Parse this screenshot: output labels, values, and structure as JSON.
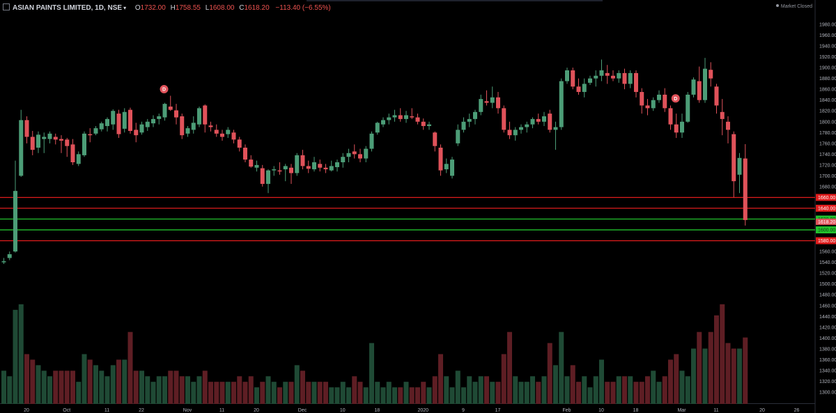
{
  "header": {
    "symbol": "ASIAN PAINTS LIMITED, 1D, NSE",
    "o_label": "O",
    "o_value": "1732.00",
    "h_label": "H",
    "h_value": "1758.55",
    "l_label": "L",
    "l_value": "1608.00",
    "c_label": "C",
    "c_value": "1618.20",
    "change": "−113.40 (−6.55%)",
    "status": "Market Closed"
  },
  "colors": {
    "background": "#000000",
    "up": "#4c9d77",
    "down": "#e0525a",
    "volume_up": "#1f4a35",
    "volume_down": "#5e1e24",
    "resistance_line": "#e01c1c",
    "support_line": "#22c32e",
    "axis_text": "#b2b5be"
  },
  "chart_data": {
    "type": "candlestick",
    "y_ticks": [
      "1300.00",
      "1320.00",
      "1340.00",
      "1360.00",
      "1380.00",
      "1400.00",
      "1420.00",
      "1440.00",
      "1460.00",
      "1480.00",
      "1500.00",
      "1520.00",
      "1540.00",
      "1560.00",
      "1580.00",
      "1600.00",
      "1620.00",
      "1640.00",
      "1660.00",
      "1680.00",
      "1700.00",
      "1720.00",
      "1740.00",
      "1760.00",
      "1780.00",
      "1800.00",
      "1820.00",
      "1840.00",
      "1860.00",
      "1880.00",
      "1900.00",
      "1920.00",
      "1940.00",
      "1960.00",
      "1980.00"
    ],
    "ylim": [
      1285,
      1990
    ],
    "x_ticks": [
      {
        "label": "20",
        "index": 2
      },
      {
        "label": "Oct",
        "index": 9
      },
      {
        "label": "11",
        "index": 16
      },
      {
        "label": "22",
        "index": 22
      },
      {
        "label": "Nov",
        "index": 30
      },
      {
        "label": "11",
        "index": 36
      },
      {
        "label": "20",
        "index": 42
      },
      {
        "label": "Dec",
        "index": 50
      },
      {
        "label": "10",
        "index": 57
      },
      {
        "label": "18",
        "index": 63
      },
      {
        "label": "2020",
        "index": 71
      },
      {
        "label": "9",
        "index": 78
      },
      {
        "label": "17",
        "index": 84
      },
      {
        "label": "Feb",
        "index": 96
      },
      {
        "label": "10",
        "index": 102
      },
      {
        "label": "18",
        "index": 108
      },
      {
        "label": "Mar",
        "index": 116
      },
      {
        "label": "11",
        "index": 122
      },
      {
        "label": "20",
        "index": 130
      },
      {
        "label": "26",
        "index": 136
      }
    ],
    "horizontal_lines": [
      {
        "value": 1660,
        "label": "1660.00",
        "kind": "resistance"
      },
      {
        "value": 1640,
        "label": "1640.00",
        "kind": "resistance"
      },
      {
        "value": 1620,
        "label": "1620.00",
        "kind": "support"
      },
      {
        "value": 1600,
        "label": "1600.00",
        "kind": "support"
      },
      {
        "value": 1580,
        "label": "1580.00",
        "kind": "resistance"
      }
    ],
    "last_price": {
      "value": 1618.2,
      "label": "1618.20"
    },
    "dividend_markers": [
      {
        "label": "D",
        "index": 28,
        "price": 1855
      },
      {
        "label": "D",
        "index": 117,
        "price": 1838
      }
    ],
    "candles": [
      [
        1540,
        1548,
        1537,
        1542,
        6
      ],
      [
        1548,
        1560,
        1544,
        1555,
        5
      ],
      [
        1560,
        1728,
        1558,
        1672,
        17
      ],
      [
        1700,
        1822,
        1698,
        1803,
        18
      ],
      [
        1803,
        1810,
        1760,
        1772,
        9
      ],
      [
        1772,
        1783,
        1738,
        1748,
        8
      ],
      [
        1752,
        1782,
        1742,
        1776,
        7
      ],
      [
        1768,
        1780,
        1742,
        1772,
        6
      ],
      [
        1768,
        1782,
        1760,
        1778,
        5
      ],
      [
        1772,
        1778,
        1758,
        1767,
        6
      ],
      [
        1768,
        1775,
        1742,
        1765,
        6
      ],
      [
        1767,
        1770,
        1735,
        1755,
        6
      ],
      [
        1758,
        1768,
        1720,
        1725,
        6
      ],
      [
        1722,
        1745,
        1718,
        1740,
        4
      ],
      [
        1738,
        1782,
        1735,
        1778,
        9
      ],
      [
        1777,
        1788,
        1762,
        1775,
        8
      ],
      [
        1778,
        1792,
        1775,
        1788,
        7
      ],
      [
        1786,
        1800,
        1782,
        1797,
        6
      ],
      [
        1792,
        1808,
        1782,
        1805,
        5
      ],
      [
        1795,
        1823,
        1785,
        1820,
        7
      ],
      [
        1815,
        1822,
        1770,
        1777,
        8
      ],
      [
        1787,
        1825,
        1780,
        1818,
        8
      ],
      [
        1822,
        1826,
        1778,
        1783,
        13
      ],
      [
        1785,
        1798,
        1762,
        1775,
        6
      ],
      [
        1780,
        1800,
        1776,
        1795,
        6
      ],
      [
        1790,
        1805,
        1783,
        1800,
        5
      ],
      [
        1797,
        1812,
        1790,
        1805,
        4
      ],
      [
        1805,
        1815,
        1795,
        1810,
        5
      ],
      [
        1808,
        1835,
        1802,
        1833,
        5
      ],
      [
        1828,
        1848,
        1820,
        1822,
        6
      ],
      [
        1821,
        1833,
        1795,
        1808,
        6
      ],
      [
        1810,
        1815,
        1768,
        1775,
        5
      ],
      [
        1778,
        1792,
        1772,
        1788,
        5
      ],
      [
        1785,
        1810,
        1778,
        1798,
        4
      ],
      [
        1795,
        1828,
        1790,
        1825,
        5
      ],
      [
        1830,
        1832,
        1780,
        1795,
        6
      ],
      [
        1793,
        1800,
        1782,
        1790,
        4
      ],
      [
        1785,
        1795,
        1772,
        1778,
        4
      ],
      [
        1778,
        1785,
        1765,
        1772,
        4
      ],
      [
        1777,
        1790,
        1770,
        1785,
        4
      ],
      [
        1780,
        1785,
        1760,
        1767,
        4
      ],
      [
        1767,
        1772,
        1745,
        1752,
        5
      ],
      [
        1752,
        1758,
        1725,
        1730,
        4
      ],
      [
        1730,
        1738,
        1715,
        1717,
        5
      ],
      [
        1715,
        1728,
        1708,
        1720,
        3
      ],
      [
        1714,
        1720,
        1680,
        1685,
        4
      ],
      [
        1685,
        1712,
        1668,
        1710,
        5
      ],
      [
        1710,
        1718,
        1700,
        1712,
        4
      ],
      [
        1710,
        1725,
        1702,
        1708,
        3
      ],
      [
        1712,
        1722,
        1690,
        1718,
        4
      ],
      [
        1715,
        1722,
        1685,
        1705,
        4
      ],
      [
        1705,
        1742,
        1700,
        1738,
        7
      ],
      [
        1738,
        1748,
        1712,
        1718,
        6
      ],
      [
        1718,
        1728,
        1705,
        1713,
        4
      ],
      [
        1712,
        1735,
        1708,
        1725,
        4
      ],
      [
        1722,
        1730,
        1708,
        1715,
        4
      ],
      [
        1715,
        1722,
        1705,
        1712,
        4
      ],
      [
        1710,
        1728,
        1708,
        1718,
        3
      ],
      [
        1716,
        1730,
        1708,
        1725,
        3
      ],
      [
        1725,
        1742,
        1715,
        1735,
        4
      ],
      [
        1735,
        1750,
        1725,
        1742,
        3
      ],
      [
        1745,
        1758,
        1732,
        1740,
        5
      ],
      [
        1740,
        1750,
        1725,
        1732,
        4
      ],
      [
        1732,
        1755,
        1725,
        1750,
        3
      ],
      [
        1750,
        1782,
        1745,
        1778,
        11
      ],
      [
        1780,
        1800,
        1776,
        1798,
        4
      ],
      [
        1795,
        1808,
        1790,
        1803,
        3
      ],
      [
        1803,
        1815,
        1795,
        1808,
        4
      ],
      [
        1808,
        1822,
        1800,
        1812,
        3
      ],
      [
        1812,
        1825,
        1800,
        1805,
        3
      ],
      [
        1805,
        1820,
        1798,
        1812,
        4
      ],
      [
        1810,
        1825,
        1805,
        1808,
        3
      ],
      [
        1808,
        1815,
        1795,
        1800,
        3
      ],
      [
        1800,
        1806,
        1785,
        1792,
        4
      ],
      [
        1792,
        1800,
        1785,
        1795,
        3
      ],
      [
        1780,
        1782,
        1745,
        1755,
        5
      ],
      [
        1752,
        1758,
        1700,
        1710,
        9
      ],
      [
        1712,
        1732,
        1705,
        1722,
        5
      ],
      [
        1700,
        1735,
        1695,
        1730,
        3
      ],
      [
        1760,
        1795,
        1755,
        1785,
        6
      ],
      [
        1785,
        1808,
        1780,
        1800,
        3
      ],
      [
        1800,
        1815,
        1790,
        1805,
        5
      ],
      [
        1805,
        1822,
        1795,
        1818,
        4
      ],
      [
        1818,
        1850,
        1812,
        1842,
        5
      ],
      [
        1838,
        1858,
        1830,
        1835,
        5
      ],
      [
        1835,
        1865,
        1825,
        1845,
        4
      ],
      [
        1845,
        1855,
        1815,
        1825,
        4
      ],
      [
        1825,
        1830,
        1780,
        1785,
        9
      ],
      [
        1785,
        1800,
        1768,
        1775,
        13
      ],
      [
        1775,
        1790,
        1765,
        1785,
        5
      ],
      [
        1785,
        1795,
        1778,
        1790,
        4
      ],
      [
        1790,
        1800,
        1780,
        1795,
        4
      ],
      [
        1795,
        1808,
        1788,
        1805,
        5
      ],
      [
        1805,
        1815,
        1795,
        1800,
        4
      ],
      [
        1800,
        1818,
        1792,
        1810,
        5
      ],
      [
        1815,
        1822,
        1780,
        1785,
        11
      ],
      [
        1785,
        1800,
        1748,
        1790,
        7
      ],
      [
        1790,
        1880,
        1785,
        1875,
        13
      ],
      [
        1875,
        1900,
        1870,
        1895,
        5
      ],
      [
        1895,
        1900,
        1860,
        1865,
        7
      ],
      [
        1865,
        1880,
        1850,
        1855,
        4
      ],
      [
        1855,
        1880,
        1845,
        1870,
        5
      ],
      [
        1872,
        1885,
        1868,
        1880,
        3
      ],
      [
        1880,
        1895,
        1865,
        1885,
        5
      ],
      [
        1885,
        1915,
        1875,
        1895,
        8
      ],
      [
        1890,
        1905,
        1870,
        1885,
        4
      ],
      [
        1885,
        1895,
        1875,
        1880,
        4
      ],
      [
        1880,
        1895,
        1872,
        1890,
        5
      ],
      [
        1890,
        1898,
        1860,
        1870,
        5
      ],
      [
        1870,
        1895,
        1862,
        1890,
        5
      ],
      [
        1890,
        1895,
        1845,
        1855,
        4
      ],
      [
        1855,
        1862,
        1815,
        1830,
        4
      ],
      [
        1830,
        1842,
        1812,
        1825,
        5
      ],
      [
        1825,
        1845,
        1820,
        1840,
        6
      ],
      [
        1840,
        1858,
        1835,
        1850,
        4
      ],
      [
        1850,
        1862,
        1818,
        1825,
        5
      ],
      [
        1825,
        1830,
        1785,
        1795,
        8
      ],
      [
        1795,
        1815,
        1770,
        1780,
        9
      ],
      [
        1780,
        1815,
        1770,
        1800,
        6
      ],
      [
        1800,
        1855,
        1798,
        1850,
        5
      ],
      [
        1850,
        1882,
        1845,
        1878,
        10
      ],
      [
        1875,
        1902,
        1835,
        1840,
        13
      ],
      [
        1840,
        1918,
        1835,
        1898,
        10
      ],
      [
        1896,
        1910,
        1865,
        1880,
        13
      ],
      [
        1865,
        1870,
        1815,
        1830,
        16
      ],
      [
        1818,
        1842,
        1775,
        1805,
        18
      ],
      [
        1800,
        1810,
        1760,
        1785,
        11
      ],
      [
        1777,
        1782,
        1660,
        1690,
        10
      ],
      [
        1702,
        1742,
        1668,
        1733,
        10
      ],
      [
        1732,
        1758.55,
        1608,
        1618.2,
        12
      ]
    ]
  }
}
